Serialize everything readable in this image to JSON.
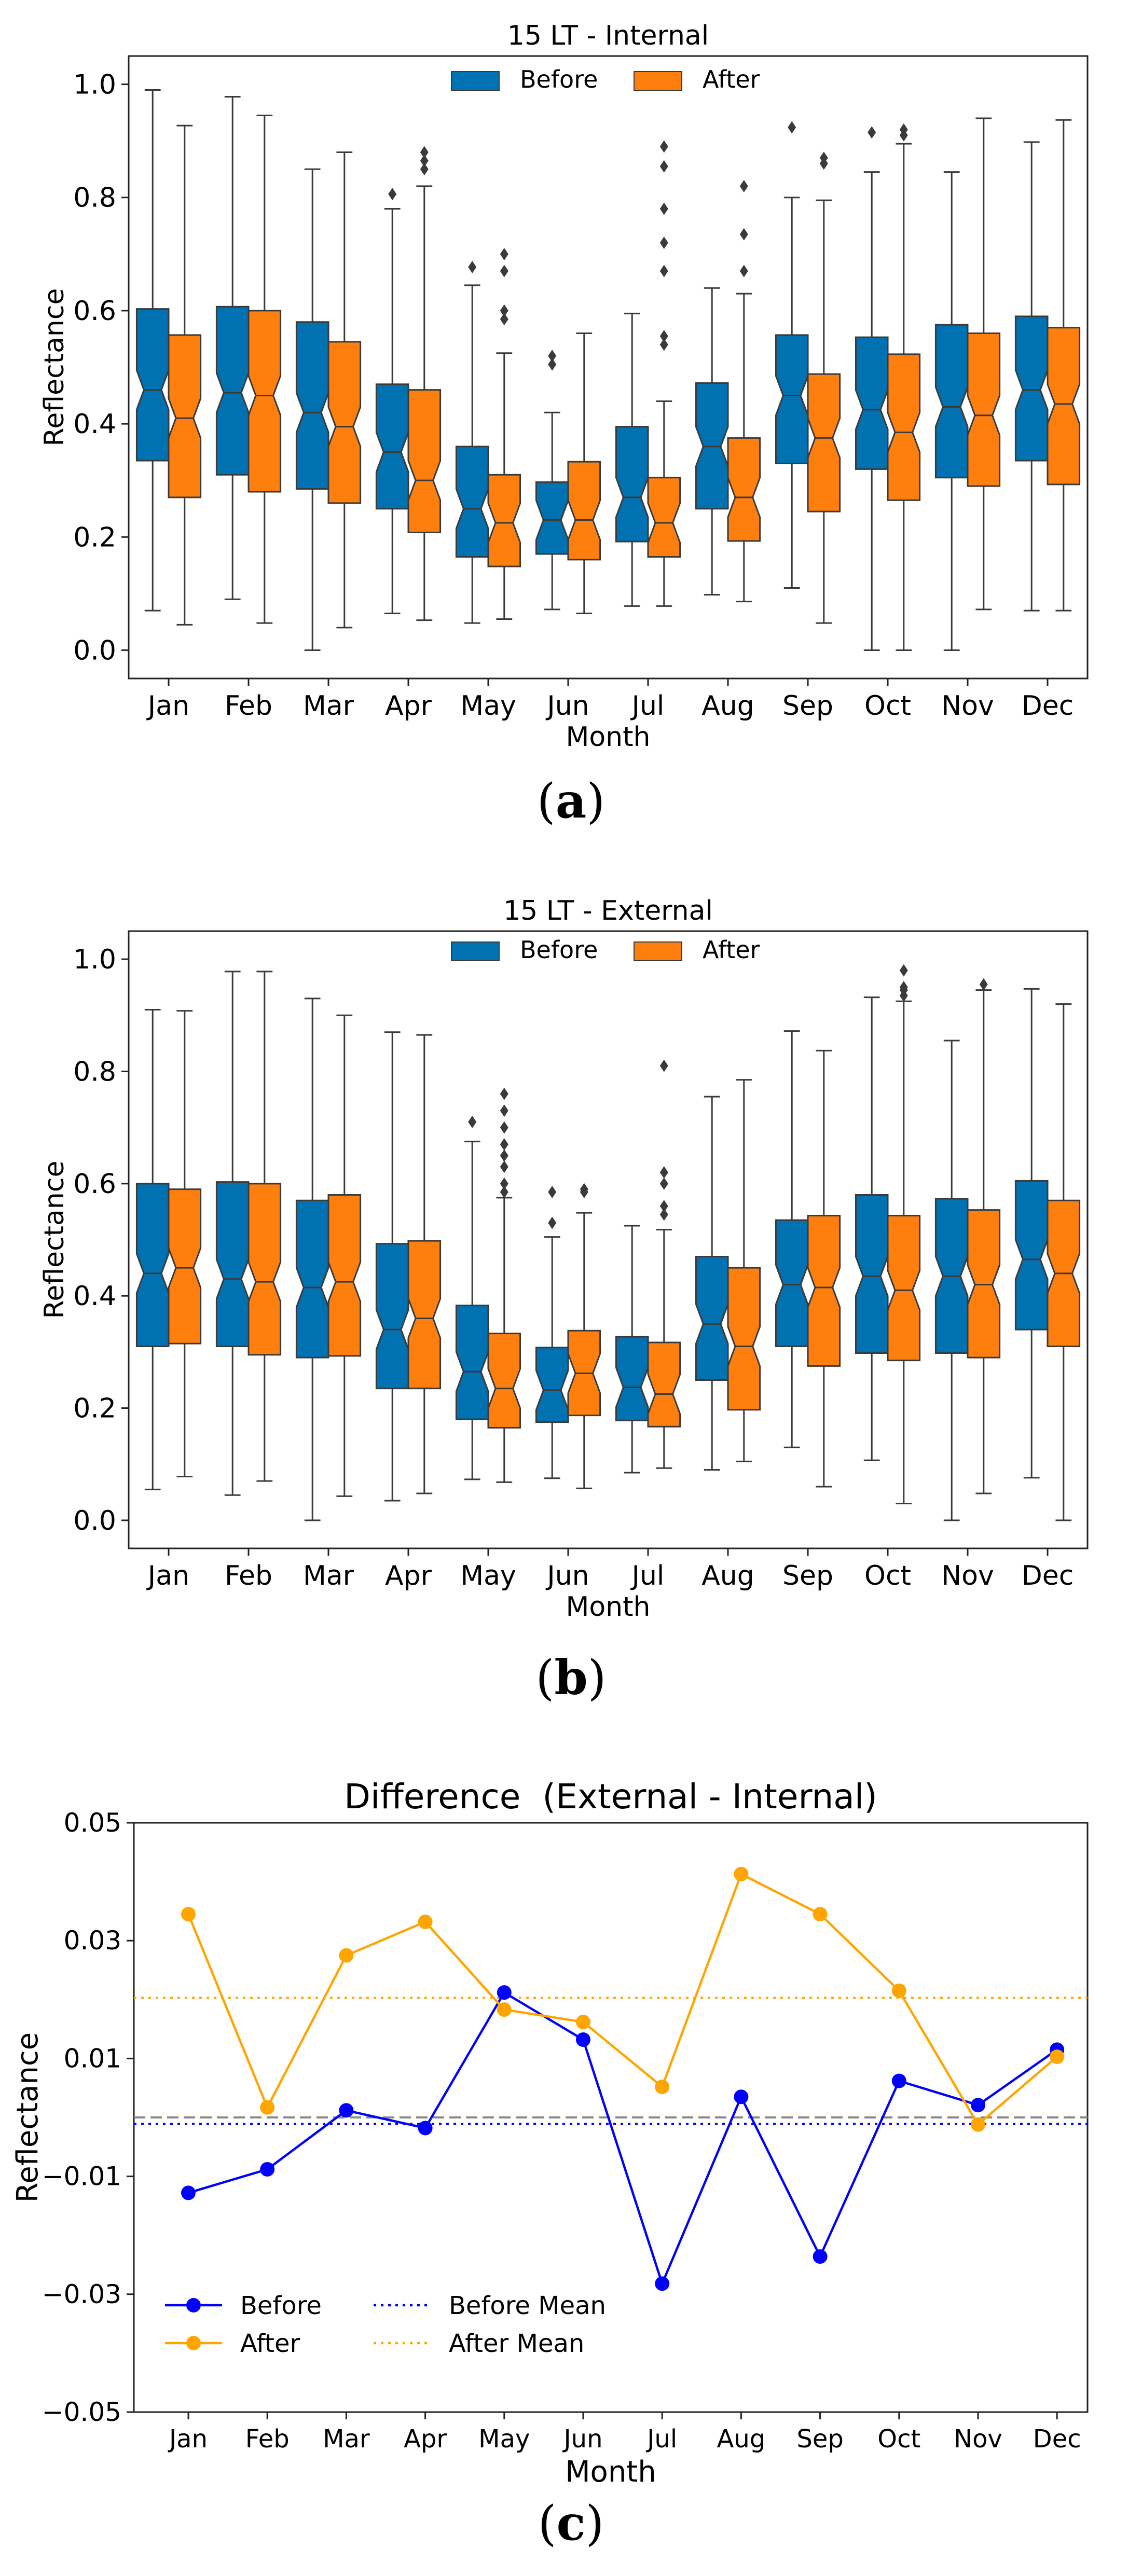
{
  "chart_data": [
    {
      "type": "boxplot",
      "title": "15 LT - Internal",
      "xlabel": "Month",
      "ylabel": "Reflectance",
      "ylim": [
        -0.05,
        1.05
      ],
      "yticks": [
        "0.0",
        "0.2",
        "0.4",
        "0.6",
        "0.8",
        "1.0"
      ],
      "categories": [
        "Jan",
        "Feb",
        "Mar",
        "Apr",
        "May",
        "Jun",
        "Jul",
        "Aug",
        "Sep",
        "Oct",
        "Nov",
        "Dec"
      ],
      "legend": {
        "position": "top-center",
        "entries": [
          "Before",
          "After"
        ]
      },
      "series": [
        {
          "name": "Before",
          "color": "#0072b2",
          "boxes": [
            [
              0.07,
              0.335,
              0.46,
              0.603,
              0.99,
              []
            ],
            [
              0.09,
              0.31,
              0.455,
              0.607,
              0.978,
              []
            ],
            [
              0.0,
              0.285,
              0.42,
              0.58,
              0.85,
              []
            ],
            [
              0.065,
              0.25,
              0.35,
              0.47,
              0.78,
              [
                0.806
              ]
            ],
            [
              0.048,
              0.165,
              0.25,
              0.36,
              0.645,
              [
                0.677
              ]
            ],
            [
              0.072,
              0.17,
              0.23,
              0.297,
              0.42,
              [
                0.505,
                0.52
              ]
            ],
            [
              0.078,
              0.192,
              0.27,
              0.395,
              0.595,
              []
            ],
            [
              0.098,
              0.25,
              0.36,
              0.472,
              0.64,
              []
            ],
            [
              0.11,
              0.33,
              0.45,
              0.557,
              0.8,
              [
                0.924
              ]
            ],
            [
              0.0,
              0.32,
              0.425,
              0.553,
              0.845,
              [
                0.915
              ]
            ],
            [
              0.0,
              0.305,
              0.43,
              0.575,
              0.845,
              []
            ],
            [
              0.07,
              0.335,
              0.46,
              0.59,
              0.898,
              []
            ]
          ]
        },
        {
          "name": "After",
          "color": "#ff7f0e",
          "boxes": [
            [
              0.045,
              0.27,
              0.41,
              0.557,
              0.927,
              []
            ],
            [
              0.048,
              0.28,
              0.45,
              0.6,
              0.945,
              []
            ],
            [
              0.04,
              0.26,
              0.395,
              0.545,
              0.88,
              []
            ],
            [
              0.053,
              0.208,
              0.3,
              0.46,
              0.82,
              [
                0.85,
                0.865,
                0.88
              ]
            ],
            [
              0.055,
              0.148,
              0.225,
              0.31,
              0.525,
              [
                0.585,
                0.6,
                0.67,
                0.7
              ]
            ],
            [
              0.065,
              0.16,
              0.23,
              0.333,
              0.56,
              []
            ],
            [
              0.078,
              0.165,
              0.225,
              0.305,
              0.44,
              [
                0.54,
                0.555,
                0.67,
                0.72,
                0.78,
                0.855,
                0.89
              ]
            ],
            [
              0.086,
              0.193,
              0.27,
              0.375,
              0.63,
              [
                0.67,
                0.735,
                0.82
              ]
            ],
            [
              0.048,
              0.245,
              0.375,
              0.488,
              0.795,
              [
                0.86,
                0.87
              ]
            ],
            [
              0.0,
              0.265,
              0.385,
              0.523,
              0.895,
              [
                0.91,
                0.92
              ]
            ],
            [
              0.072,
              0.29,
              0.415,
              0.56,
              0.94,
              []
            ],
            [
              0.07,
              0.293,
              0.435,
              0.57,
              0.937,
              []
            ]
          ]
        }
      ]
    },
    {
      "type": "boxplot",
      "title": "15 LT - External",
      "xlabel": "Month",
      "ylabel": "Reflectance",
      "ylim": [
        -0.05,
        1.05
      ],
      "yticks": [
        "0.0",
        "0.2",
        "0.4",
        "0.6",
        "0.8",
        "1.0"
      ],
      "categories": [
        "Jan",
        "Feb",
        "Mar",
        "Apr",
        "May",
        "Jun",
        "Jul",
        "Aug",
        "Sep",
        "Oct",
        "Nov",
        "Dec"
      ],
      "legend": {
        "position": "top-center",
        "entries": [
          "Before",
          "After"
        ]
      },
      "series": [
        {
          "name": "Before",
          "color": "#0072b2",
          "boxes": [
            [
              0.055,
              0.31,
              0.44,
              0.6,
              0.91,
              []
            ],
            [
              0.045,
              0.31,
              0.43,
              0.603,
              0.978,
              []
            ],
            [
              0.0,
              0.29,
              0.415,
              0.57,
              0.93,
              []
            ],
            [
              0.035,
              0.235,
              0.34,
              0.493,
              0.87,
              []
            ],
            [
              0.073,
              0.18,
              0.265,
              0.383,
              0.675,
              [
                0.71
              ]
            ],
            [
              0.075,
              0.175,
              0.232,
              0.308,
              0.505,
              [
                0.53,
                0.585
              ]
            ],
            [
              0.085,
              0.178,
              0.237,
              0.327,
              0.525,
              []
            ],
            [
              0.09,
              0.25,
              0.35,
              0.47,
              0.755,
              []
            ],
            [
              0.13,
              0.31,
              0.42,
              0.535,
              0.872,
              []
            ],
            [
              0.107,
              0.298,
              0.435,
              0.58,
              0.932,
              []
            ],
            [
              0.0,
              0.298,
              0.435,
              0.573,
              0.855,
              []
            ],
            [
              0.076,
              0.34,
              0.465,
              0.605,
              0.947,
              []
            ]
          ]
        },
        {
          "name": "After",
          "color": "#ff7f0e",
          "boxes": [
            [
              0.078,
              0.315,
              0.45,
              0.59,
              0.908,
              []
            ],
            [
              0.07,
              0.295,
              0.425,
              0.6,
              0.978,
              []
            ],
            [
              0.043,
              0.293,
              0.425,
              0.58,
              0.9,
              []
            ],
            [
              0.048,
              0.235,
              0.36,
              0.498,
              0.865,
              []
            ],
            [
              0.068,
              0.165,
              0.235,
              0.333,
              0.575,
              [
                0.585,
                0.6,
                0.63,
                0.65,
                0.67,
                0.7,
                0.73,
                0.76
              ]
            ],
            [
              0.057,
              0.187,
              0.262,
              0.338,
              0.548,
              [
                0.585,
                0.59
              ]
            ],
            [
              0.093,
              0.167,
              0.225,
              0.317,
              0.518,
              [
                0.545,
                0.56,
                0.6,
                0.62,
                0.81
              ]
            ],
            [
              0.105,
              0.197,
              0.31,
              0.45,
              0.785,
              []
            ],
            [
              0.06,
              0.275,
              0.415,
              0.543,
              0.837,
              []
            ],
            [
              0.03,
              0.285,
              0.41,
              0.543,
              0.925,
              [
                0.935,
                0.945,
                0.95,
                0.98
              ]
            ],
            [
              0.048,
              0.29,
              0.42,
              0.553,
              0.945,
              [
                0.955
              ]
            ],
            [
              0.0,
              0.31,
              0.44,
              0.57,
              0.92,
              []
            ]
          ]
        }
      ]
    },
    {
      "type": "line",
      "title": "Difference  (External - Internal)",
      "xlabel": "Month",
      "ylabel": "Reflectance",
      "ylim": [
        -0.05,
        0.05
      ],
      "yticks": [
        "0.05",
        "0.03",
        "0.01",
        "-0.01",
        "-0.03",
        "-0.05"
      ],
      "categories": [
        "Jan",
        "Feb",
        "Mar",
        "Apr",
        "May",
        "Jun",
        "Jul",
        "Aug",
        "Sep",
        "Oct",
        "Nov",
        "Dec"
      ],
      "legend": {
        "position": "bottom-left"
      },
      "series": [
        {
          "name": "Before",
          "color": "#0000ff",
          "values": [
            -0.0128,
            -0.0088,
            0.0012,
            -0.0018,
            0.0212,
            0.0132,
            -0.0282,
            0.0035,
            -0.0236,
            0.0062,
            0.0021,
            0.0115
          ]
        },
        {
          "name": "After",
          "color": "#ffa500",
          "values": [
            0.0345,
            0.0017,
            0.0275,
            0.0332,
            0.0183,
            0.0162,
            0.0052,
            0.0413,
            0.0345,
            0.0215,
            -0.0012,
            0.0103
          ]
        }
      ],
      "hlines": [
        {
          "name": "Before Mean",
          "value": -0.0011,
          "color": "#0000ff",
          "style": "dotted"
        },
        {
          "name": "After Mean",
          "value": 0.0203,
          "color": "#ffa500",
          "style": "dotted"
        },
        {
          "name": "zero",
          "value": 0.0,
          "color": "#888888",
          "style": "dashed"
        }
      ]
    }
  ],
  "captions": [
    "a",
    "b",
    "c"
  ]
}
